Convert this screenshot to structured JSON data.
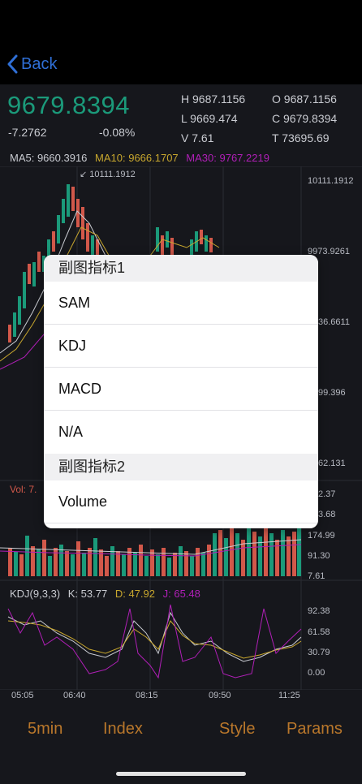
{
  "nav": {
    "back_label": "Back"
  },
  "quote": {
    "price": "9679.8394",
    "change": "-7.2762",
    "change_pct": "-0.08%",
    "high": "H 9687.1156",
    "open": "O 9687.1156",
    "low": "L 9669.474",
    "close": "C 9679.8394",
    "volume": "V 7.61",
    "turnover": "T 73695.69"
  },
  "ma": {
    "ma5": "MA5: 9660.3916",
    "ma10": "MA10: 9666.1707",
    "ma30": "MA30: 9767.2219"
  },
  "main_chart": {
    "max_marker": "10111.1912",
    "y_labels": [
      "10111.1912",
      "9973.9261",
      "36.6611",
      "99.396",
      "62.131"
    ]
  },
  "volume_chart": {
    "label": "Vol: 7.",
    "y_labels": [
      "2.37",
      "3.68",
      "174.99",
      "91.30",
      "7.61"
    ]
  },
  "kdj": {
    "label": "KDJ(9,3,3)",
    "k": "K: 53.77",
    "d": "D: 47.92",
    "j": "J: 65.48",
    "y_labels": [
      "92.38",
      "61.58",
      "30.79",
      "0.00"
    ]
  },
  "time_axis": [
    "05:05",
    "06:40",
    "08:15",
    "09:50",
    "11:25"
  ],
  "tabs": {
    "interval": "5min",
    "index": "Index",
    "style": "Style",
    "params": "Params"
  },
  "menu": {
    "section1_title": "副图指标1",
    "section1_items": [
      "SAM",
      "KDJ",
      "MACD",
      "N/A"
    ],
    "section2_title": "副图指标2",
    "section2_items": [
      "Volume"
    ]
  },
  "colors": {
    "up": "#1b9a7a",
    "down": "#d2584a",
    "ma5": "#c9cbd1",
    "ma10": "#c8a72e",
    "ma30": "#b01fb7",
    "tab_accent": "#b9772b",
    "back_accent": "#2f6fd6"
  }
}
